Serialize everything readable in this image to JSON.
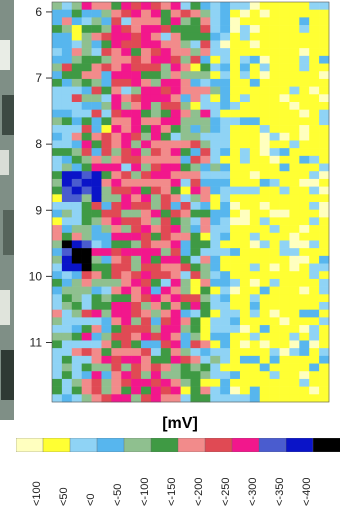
{
  "chart_data": {
    "type": "heatmap",
    "unit_label": "[mV]",
    "y_ticks": [
      "6",
      "7",
      "8",
      "9",
      "10",
      "11"
    ],
    "y_range": [
      5.85,
      11.9
    ],
    "x_range": [
      0,
      1
    ],
    "legend": {
      "classes": [
        {
          "label": "<100",
          "color": "#ffffbf"
        },
        {
          "label": "<50",
          "color": "#ffff33"
        },
        {
          "label": "<0",
          "color": "#8fd3f5"
        },
        {
          "label": "<-50",
          "color": "#57b6ee"
        },
        {
          "label": "<-100",
          "color": "#8fc08f"
        },
        {
          "label": "<-150",
          "color": "#3f9a44"
        },
        {
          "label": "<-200",
          "color": "#f28b8b"
        },
        {
          "label": "<-250",
          "color": "#e04a54"
        },
        {
          "label": "<-300",
          "color": "#f2178c"
        },
        {
          "label": "<-350",
          "color": "#4a5ccf"
        },
        {
          "label": "<-400",
          "color": "#0a14c8"
        },
        {
          "label": "",
          "color": "#000000"
        }
      ]
    }
  }
}
